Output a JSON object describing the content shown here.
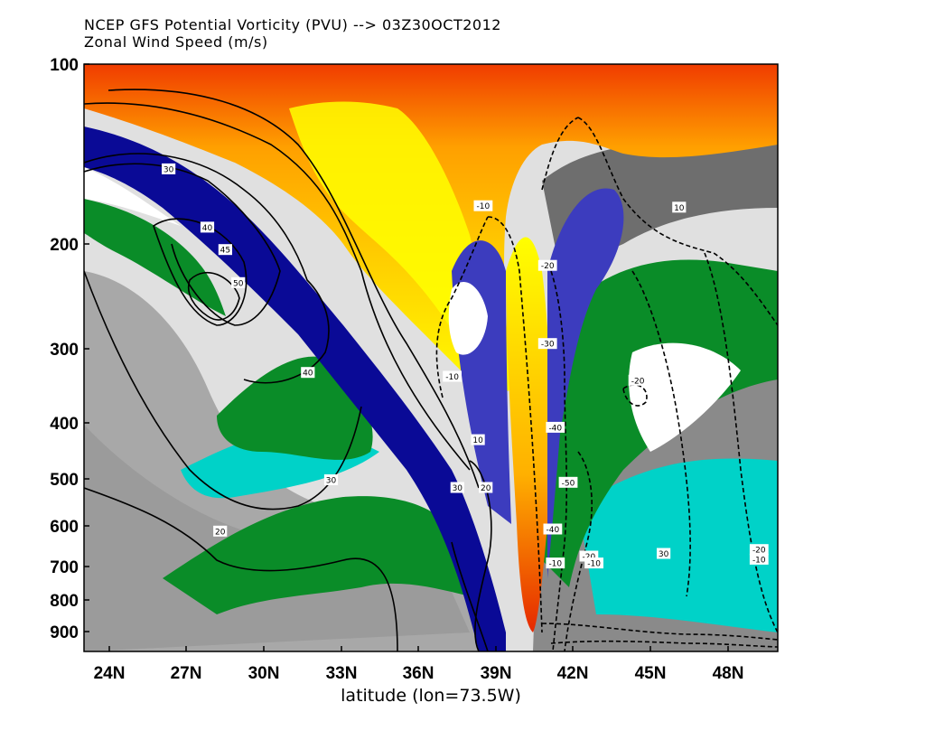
{
  "chart_data": {
    "type": "heatmap",
    "title_lines": [
      "NCEP GFS Potential Vorticity (PVU) --> 03Z30OCT2012",
      "Zonal Wind Speed (m/s)"
    ],
    "xlabel": "latitude (lon=73.5W)",
    "ylabel": "",
    "x_ticks": [
      "24N",
      "27N",
      "30N",
      "33N",
      "36N",
      "39N",
      "42N",
      "45N",
      "48N"
    ],
    "x_tick_values": [
      24,
      27,
      30,
      33,
      36,
      39,
      42,
      45,
      48
    ],
    "y_ticks": [
      "100",
      "200",
      "300",
      "400",
      "500",
      "600",
      "700",
      "800",
      "900"
    ],
    "y_tick_values": [
      100,
      200,
      300,
      400,
      500,
      600,
      700,
      800,
      900
    ],
    "xlim": [
      23,
      51.5
    ],
    "ylim_hPa": [
      100,
      950
    ],
    "y_scale": "log pressure (inverted)",
    "shading_variable": "Potential Vorticity (PVU)",
    "shading_colors": [
      "#e0e0e0",
      "#a8a8a8",
      "#808080",
      "#00d2c8",
      "#0a8c28",
      "#ffffff",
      "#3c3cbe",
      "#0a0a96",
      "#6e6e6e",
      "#e6dc32",
      "#ffff00",
      "#ffa000",
      "#f03c00"
    ],
    "contour_variable": "Zonal Wind Speed (m/s)",
    "contour_labels": [
      {
        "text": "30",
        "lat": 26.3,
        "p": 150
      },
      {
        "text": "40",
        "lat": 27.8,
        "p": 188
      },
      {
        "text": "45",
        "lat": 28.5,
        "p": 205
      },
      {
        "text": "50",
        "lat": 29.0,
        "p": 233
      },
      {
        "text": "40",
        "lat": 31.7,
        "p": 330
      },
      {
        "text": "30",
        "lat": 32.6,
        "p": 500
      },
      {
        "text": "20",
        "lat": 28.3,
        "p": 610
      },
      {
        "text": "10",
        "lat": 38.3,
        "p": 428
      },
      {
        "text": "30",
        "lat": 37.5,
        "p": 515
      },
      {
        "text": "20",
        "lat": 38.6,
        "p": 515
      },
      {
        "text": "-10",
        "lat": 38.5,
        "p": 173
      },
      {
        "text": "-10",
        "lat": 37.3,
        "p": 335
      },
      {
        "text": "-20",
        "lat": 41.0,
        "p": 218
      },
      {
        "text": "-30",
        "lat": 41.0,
        "p": 295
      },
      {
        "text": "-40",
        "lat": 41.3,
        "p": 408
      },
      {
        "text": "-50",
        "lat": 41.8,
        "p": 505
      },
      {
        "text": "-20",
        "lat": 44.5,
        "p": 340
      },
      {
        "text": "10",
        "lat": 46.1,
        "p": 174
      },
      {
        "text": "-40",
        "lat": 41.2,
        "p": 605
      },
      {
        "text": "-10",
        "lat": 41.3,
        "p": 690
      },
      {
        "text": "-20",
        "lat": 42.6,
        "p": 672
      },
      {
        "text": "-10",
        "lat": 42.8,
        "p": 690
      },
      {
        "text": "30",
        "lat": 45.5,
        "p": 665
      },
      {
        "text": "-20",
        "lat": 49.2,
        "p": 655
      },
      {
        "text": "-10",
        "lat": 49.2,
        "p": 680
      }
    ]
  }
}
